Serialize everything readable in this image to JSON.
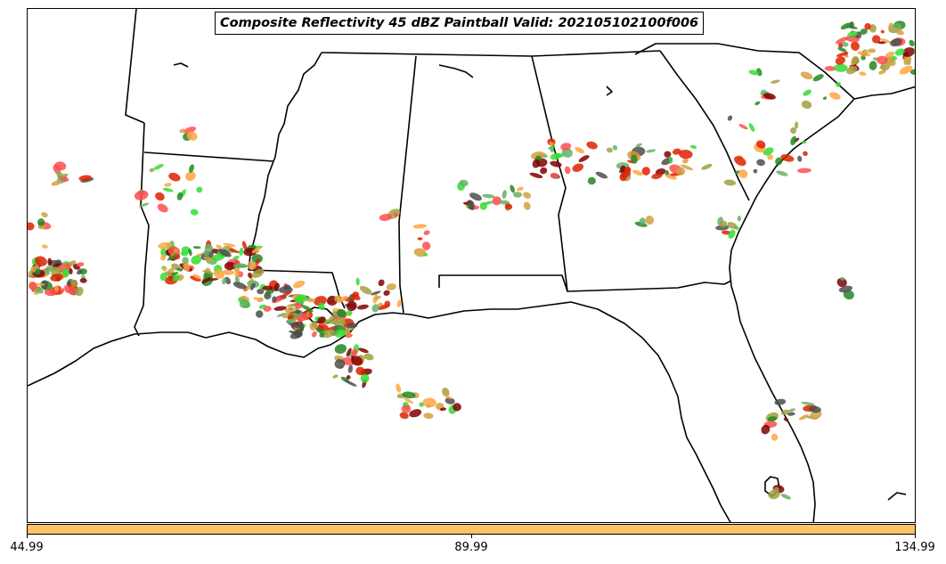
{
  "title": "Composite Reflectivity 45 dBZ Paintball Valid: 202105102100f006",
  "colors": {
    "map_lines": "#000000",
    "colorbar_fill": "#ffc266",
    "paint": [
      "#ff4d4d",
      "#33dd33",
      "#ffa640",
      "#4d4d4d",
      "#a0a040",
      "#800000",
      "#66b066",
      "#dd2200",
      "#228822",
      "#d4a040"
    ]
  },
  "colorbar": {
    "ticks": [
      "44.99",
      "89.99",
      "134.99"
    ]
  }
}
